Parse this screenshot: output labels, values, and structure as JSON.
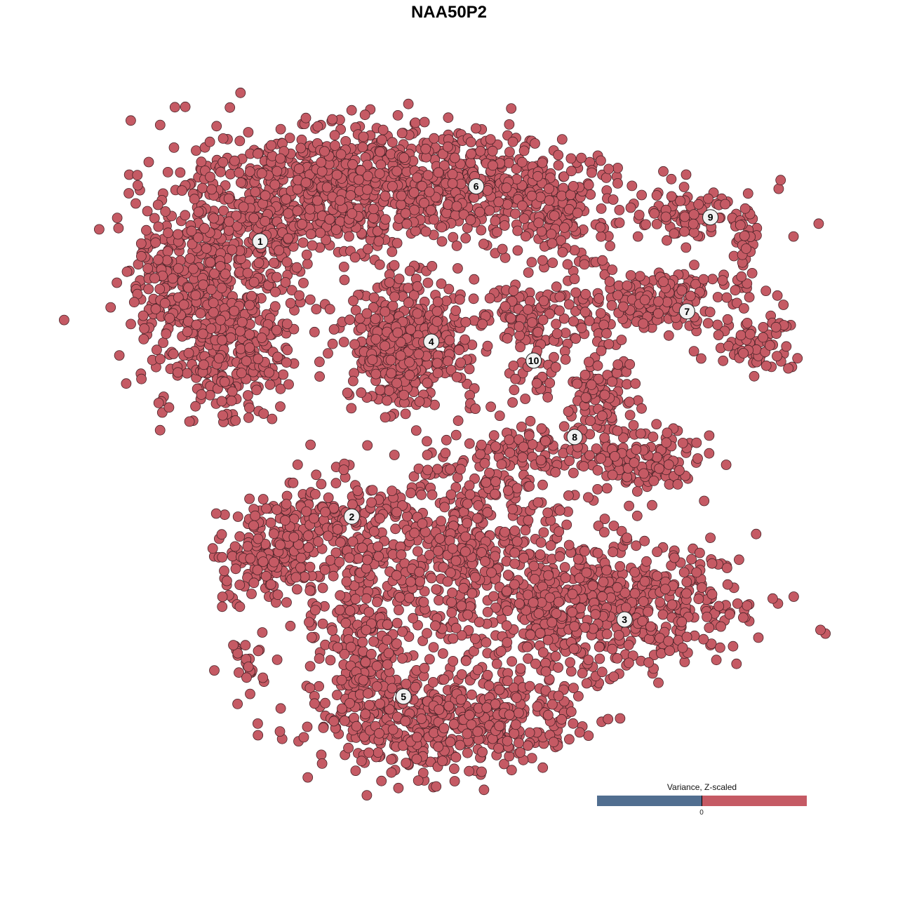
{
  "chart_data": {
    "type": "scatter",
    "title": "NAA50P2",
    "xlabel": "",
    "ylabel": "",
    "grid": false,
    "axes_visible": false,
    "point_color": "#c55a64",
    "point_edge_color": "#4a2328",
    "clusters": [
      {
        "label": "1",
        "center": [
          -29.9,
          32.9
        ]
      },
      {
        "label": "2",
        "center": [
          -15.4,
          -10.7
        ]
      },
      {
        "label": "3",
        "center": [
          27.8,
          -27.0
        ]
      },
      {
        "label": "4",
        "center": [
          -2.8,
          17.0
        ]
      },
      {
        "label": "5",
        "center": [
          -7.2,
          -39.2
        ]
      },
      {
        "label": "6",
        "center": [
          4.3,
          41.6
        ]
      },
      {
        "label": "7",
        "center": [
          37.7,
          21.8
        ]
      },
      {
        "label": "8",
        "center": [
          19.9,
          1.9
        ]
      },
      {
        "label": "9",
        "center": [
          41.4,
          36.7
        ]
      },
      {
        "label": "10",
        "center": [
          13.4,
          14.0
        ]
      }
    ],
    "legend": {
      "title": "Variance, Z-scaled",
      "placement": "bottom-right",
      "low_color": "#516e90",
      "high_color": "#c55a64",
      "tick_label": "0"
    }
  }
}
